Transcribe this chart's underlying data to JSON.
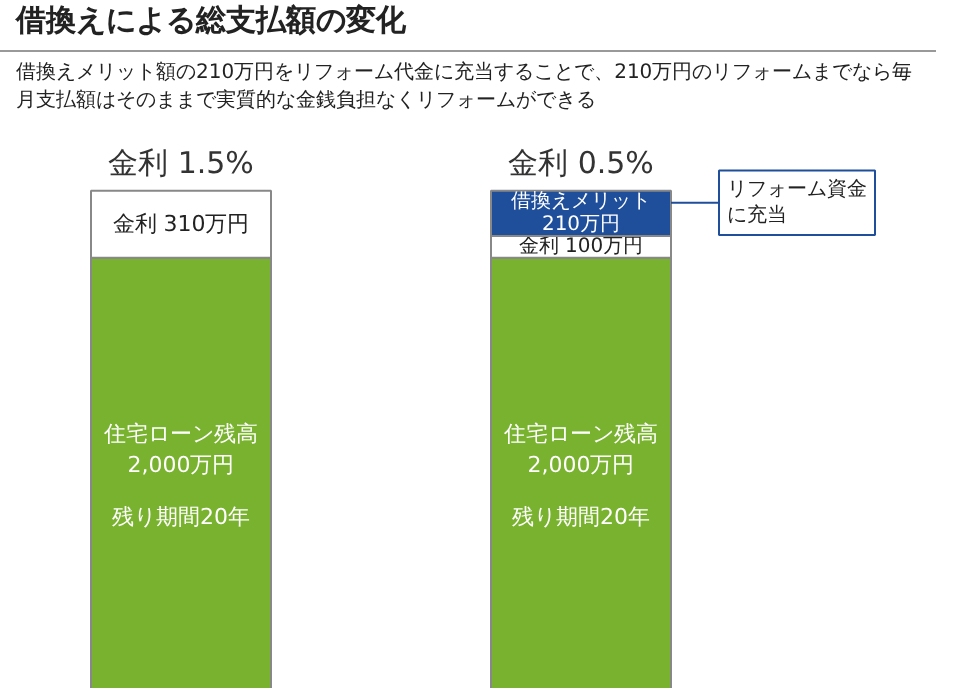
{
  "chart_data": {
    "type": "bar",
    "title": "借換えによる総支払額の変化",
    "subtitle": "借換えメリット額の210万円をリフォーム代金に充当することで、210万円のリフォームまでなら毎月支払額はそのままで実質的な金銭負担なくリフォームができる",
    "categories": [
      "金利 1.5%",
      "金利 0.5%"
    ],
    "stacked": true,
    "series": [
      {
        "color": "#78b22e",
        "values": [
          2000,
          2000
        ],
        "value_labels": [
          "住宅ローン残高2,000万円",
          "住宅ローン残高2,000万円"
        ]
      },
      {
        "color": "#ffffff",
        "values": [
          310,
          100
        ],
        "value_labels": [
          "金利 310万円",
          "金利 100万円"
        ]
      },
      {
        "color": "#1f4e9b",
        "values": [
          null,
          210
        ],
        "value_labels": [
          null,
          "借換えメリット210万円"
        ]
      }
    ],
    "annotations": [
      "リフォーム資金に充当",
      "残り期間20年",
      "残り期間20年"
    ]
  }
}
